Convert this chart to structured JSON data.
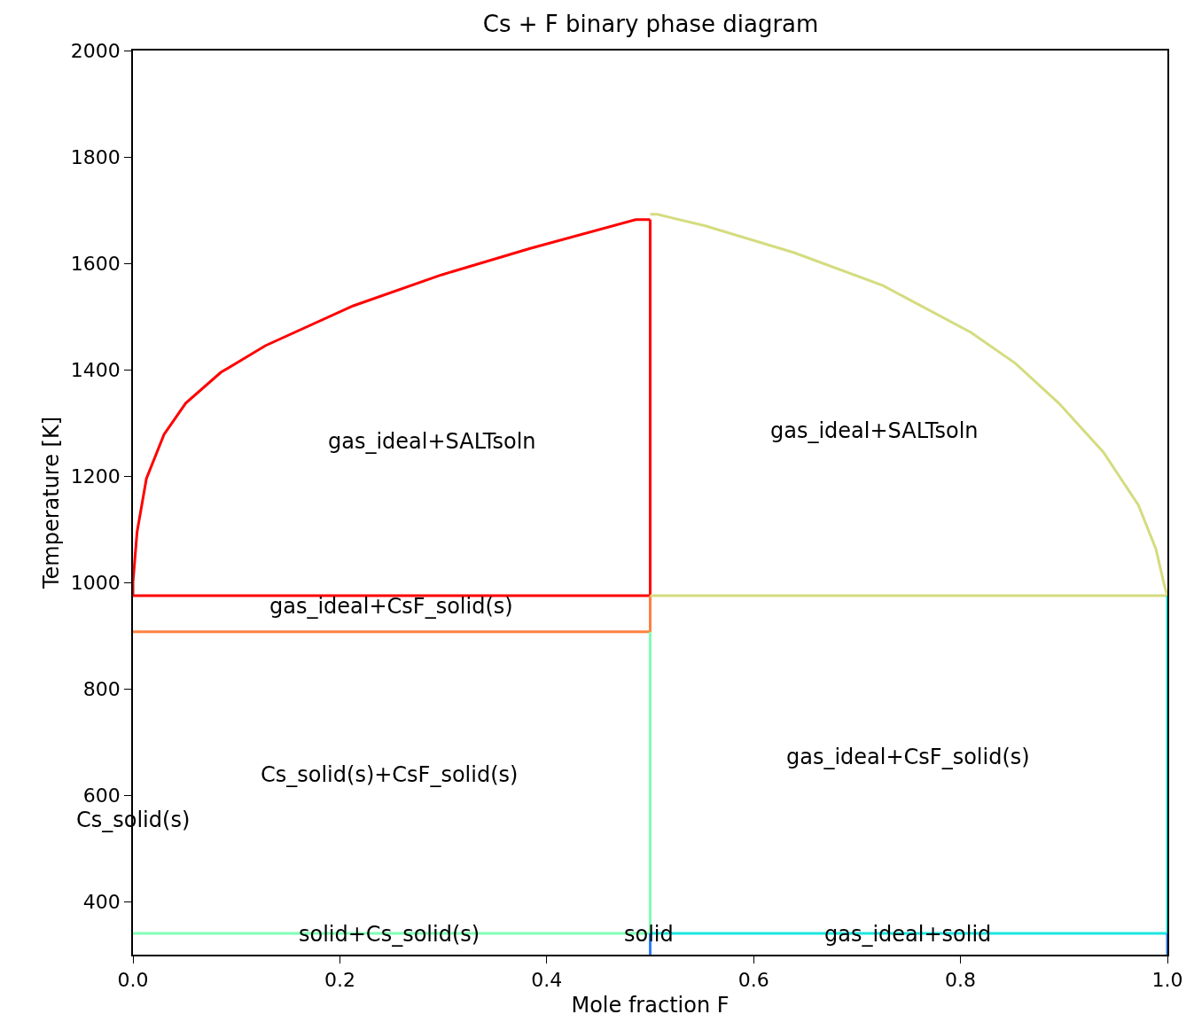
{
  "chart_data": {
    "type": "line",
    "title": "Cs + F binary phase diagram",
    "xlabel": "Mole fraction F",
    "ylabel": "Temperature [K]",
    "xlim": [
      0,
      1
    ],
    "ylim": [
      300,
      2000
    ],
    "xticks": [
      {
        "value": 0,
        "label": "0.0"
      },
      {
        "value": 0.2,
        "label": "0.2"
      },
      {
        "value": 0.4,
        "label": "0.4"
      },
      {
        "value": 0.6,
        "label": "0.6"
      },
      {
        "value": 0.8,
        "label": "0.8"
      },
      {
        "value": 1,
        "label": "1.0"
      }
    ],
    "yticks": [
      400,
      600,
      800,
      1000,
      1200,
      1400,
      1600,
      1800,
      2000
    ],
    "marker": "none",
    "line_style": "solid",
    "series": [
      {
        "color": "#ff0000",
        "x": [
          0,
          0,
          0.004,
          0.013,
          0.03,
          0.051,
          0.085,
          0.128,
          0.213,
          0.298,
          0.384,
          0.486,
          0.5
        ],
        "values": [
          975,
          1000,
          1095,
          1195,
          1278,
          1337,
          1395,
          1445,
          1520,
          1578,
          1628,
          1682,
          1682
        ]
      },
      {
        "color": "#ff0000",
        "x": [
          0.5,
          0.5
        ],
        "values": [
          1682,
          975
        ]
      },
      {
        "color": "#ff0000",
        "x": [
          0,
          0.5
        ],
        "values": [
          975,
          975
        ]
      },
      {
        "color": "#ff8040",
        "x": [
          0,
          0.5,
          0.5
        ],
        "values": [
          907,
          907,
          975
        ]
      },
      {
        "color": "#d4dc7f",
        "x": [
          0.5,
          0.507,
          0.554,
          0.639,
          0.725,
          0.81,
          0.853,
          0.895,
          0.938,
          0.972,
          0.989,
          0.997,
          1
        ],
        "values": [
          1692,
          1692,
          1670,
          1620,
          1558,
          1470,
          1412,
          1337,
          1245,
          1145,
          1062,
          995,
          975
        ]
      },
      {
        "color": "#d4dc7f",
        "x": [
          0.5,
          1
        ],
        "values": [
          975,
          975
        ]
      },
      {
        "color": "#80ffb4",
        "x": [
          0.5,
          0.5,
          0
        ],
        "values": [
          907,
          340,
          340
        ]
      },
      {
        "color": "#1ce6df",
        "x": [
          0.5,
          1,
          1
        ],
        "values": [
          340,
          340,
          975
        ]
      },
      {
        "color": "#2c7ef7",
        "x": [
          0.5,
          0.5
        ],
        "values": [
          340,
          300
        ]
      },
      {
        "color": "#2c7ef7",
        "x": [
          1,
          1
        ],
        "values": [
          340,
          300
        ]
      }
    ],
    "annotations": [
      "gas_ideal+SALTsoln",
      "gas_ideal+SALTsoln",
      "gas_ideal+CsF_solid(s)",
      "Cs_solid(s)+CsF_solid(s)",
      "Cs_solid(s)",
      "gas_ideal+CsF_solid(s)",
      "solid+Cs_solid(s)",
      "solid",
      "gas_ideal+solid"
    ]
  }
}
